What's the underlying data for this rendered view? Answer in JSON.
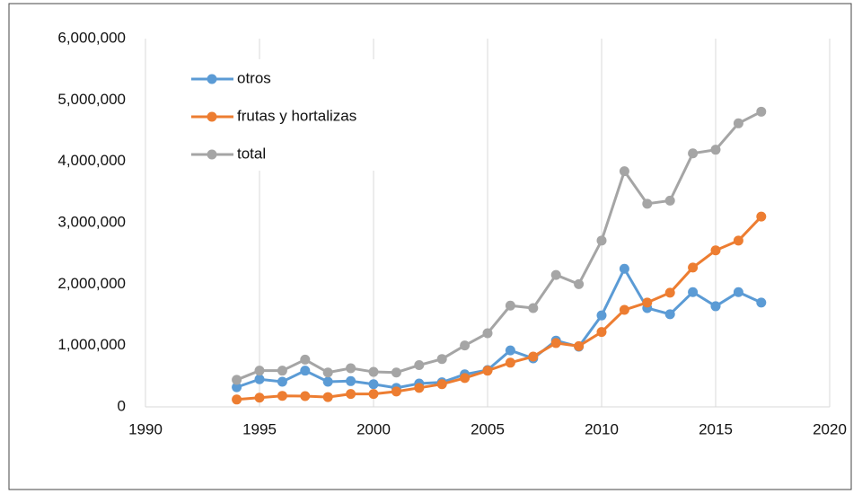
{
  "chart_data": {
    "type": "line",
    "x": [
      1994,
      1995,
      1996,
      1997,
      1998,
      1999,
      2000,
      2001,
      2002,
      2003,
      2004,
      2005,
      2006,
      2007,
      2008,
      2009,
      2010,
      2011,
      2012,
      2013,
      2014,
      2015,
      2016,
      2017
    ],
    "series": [
      {
        "name": "otros",
        "color": "#5b9bd5",
        "values": [
          320000,
          450000,
          410000,
          590000,
          410000,
          420000,
          370000,
          310000,
          380000,
          400000,
          530000,
          600000,
          920000,
          790000,
          1080000,
          980000,
          1490000,
          2250000,
          1610000,
          1510000,
          1870000,
          1640000,
          1870000,
          1700000
        ]
      },
      {
        "name": "frutas y hortalizas",
        "color": "#ed7d31",
        "values": [
          120000,
          150000,
          180000,
          175000,
          160000,
          210000,
          210000,
          250000,
          310000,
          370000,
          470000,
          590000,
          720000,
          820000,
          1040000,
          990000,
          1220000,
          1580000,
          1700000,
          1860000,
          2270000,
          2550000,
          2710000,
          3100000
        ]
      },
      {
        "name": "total",
        "color": "#a5a5a5",
        "values": [
          440000,
          590000,
          590000,
          770000,
          560000,
          630000,
          570000,
          560000,
          680000,
          780000,
          1000000,
          1200000,
          1650000,
          1610000,
          2150000,
          2000000,
          2710000,
          3840000,
          3310000,
          3360000,
          4130000,
          4190000,
          4620000,
          4810000
        ]
      }
    ],
    "xlim": [
      1990,
      2020
    ],
    "xticks": [
      1990,
      1995,
      2000,
      2005,
      2010,
      2015,
      2020
    ],
    "ylim": [
      0,
      6000000
    ],
    "yticks": [
      0,
      {
        "value": 1000000,
        "label": "1,000,000"
      },
      {
        "value": 2000000,
        "label": "2,000,000"
      },
      {
        "value": 3000000,
        "label": "3,000,000"
      },
      {
        "value": 4000000,
        "label": "4,000,000"
      },
      {
        "value": 5000000,
        "label": "5,000,000"
      },
      {
        "value": 6000000,
        "label": "6,000,000"
      }
    ],
    "grid": "x",
    "legend": "upper left"
  }
}
